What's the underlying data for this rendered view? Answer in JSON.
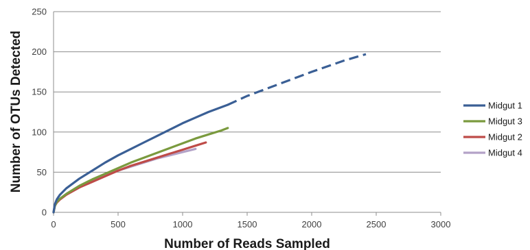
{
  "chart_data": {
    "type": "line",
    "title": "",
    "xlabel": "Number of Reads Sampled",
    "ylabel": "Number of OTUs Detected",
    "xlim": [
      0,
      3000
    ],
    "ylim": [
      0,
      250
    ],
    "xticks": [
      0,
      500,
      1000,
      1500,
      2000,
      2500,
      3000
    ],
    "yticks": [
      0,
      50,
      100,
      150,
      200,
      250
    ],
    "grid": "horizontal",
    "legend_position": "right",
    "series": [
      {
        "name": "Midgut 1",
        "color": "#3a5f95",
        "x": [
          0,
          10,
          25,
          50,
          100,
          200,
          300,
          400,
          500,
          600,
          700,
          800,
          900,
          1000,
          1100,
          1200,
          1300,
          1350
        ],
        "y": [
          0,
          10,
          16,
          22,
          30,
          42,
          52,
          62,
          71,
          79,
          87,
          95,
          103,
          111,
          118,
          125,
          131,
          134
        ],
        "extrapolated": {
          "x": [
            1350,
            1500,
            1750,
            2000,
            2250,
            2420
          ],
          "y": [
            134,
            145,
            160,
            175,
            189,
            197
          ]
        }
      },
      {
        "name": "Midgut 3",
        "color": "#7a9a3e",
        "x": [
          0,
          10,
          25,
          50,
          100,
          200,
          300,
          400,
          500,
          600,
          700,
          800,
          900,
          1000,
          1100,
          1200,
          1300,
          1350
        ],
        "y": [
          0,
          8,
          13,
          17,
          23,
          33,
          41,
          48,
          55,
          62,
          68,
          74,
          80,
          86,
          92,
          97,
          102,
          105
        ]
      },
      {
        "name": "Midgut 2",
        "color": "#be4b48",
        "x": [
          0,
          10,
          25,
          50,
          100,
          200,
          300,
          400,
          500,
          600,
          700,
          800,
          900,
          1000,
          1100,
          1180
        ],
        "y": [
          0,
          8,
          12,
          16,
          22,
          31,
          38,
          45,
          52,
          58,
          63,
          68,
          73,
          78,
          83,
          87
        ]
      },
      {
        "name": "Midgut 4",
        "color": "#b3a2c7",
        "x": [
          0,
          10,
          25,
          50,
          100,
          200,
          300,
          400,
          500,
          600,
          700,
          800,
          900,
          1000,
          1100
        ],
        "y": [
          0,
          8,
          13,
          17,
          23,
          33,
          40,
          46,
          52,
          57,
          62,
          67,
          71,
          75,
          79
        ]
      }
    ],
    "legend_order": [
      "Midgut 1",
      "Midgut 3",
      "Midgut 2",
      "Midgut 4"
    ]
  }
}
